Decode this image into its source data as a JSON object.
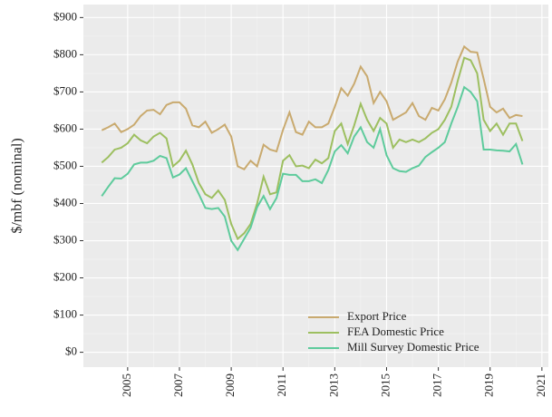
{
  "chart_data": {
    "type": "line",
    "y_label": "$/mbf (nominal)",
    "x": [
      2004,
      2004.25,
      2004.5,
      2004.75,
      2005,
      2005.25,
      2005.5,
      2005.75,
      2006,
      2006.25,
      2006.5,
      2006.75,
      2007,
      2007.25,
      2007.5,
      2007.75,
      2008,
      2008.25,
      2008.5,
      2008.75,
      2009,
      2009.25,
      2009.5,
      2009.75,
      2010,
      2010.25,
      2010.5,
      2010.75,
      2011,
      2011.25,
      2011.5,
      2011.75,
      2012,
      2012.25,
      2012.5,
      2012.75,
      2013,
      2013.25,
      2013.5,
      2013.75,
      2014,
      2014.25,
      2014.5,
      2014.75,
      2015,
      2015.25,
      2015.5,
      2015.75,
      2016,
      2016.25,
      2016.5,
      2016.75,
      2017,
      2017.25,
      2017.5,
      2017.75,
      2018,
      2018.25,
      2018.5,
      2018.75,
      2019,
      2019.25,
      2019.5,
      2019.75,
      2020,
      2020.25
    ],
    "series": [
      {
        "name": "Export Price",
        "color": "#c9aa6f",
        "values": [
          597,
          605,
          615,
          592,
          600,
          612,
          635,
          650,
          652,
          640,
          665,
          672,
          672,
          655,
          610,
          605,
          620,
          590,
          600,
          612,
          580,
          500,
          492,
          515,
          500,
          558,
          545,
          540,
          598,
          645,
          592,
          585,
          620,
          605,
          605,
          615,
          660,
          710,
          690,
          722,
          768,
          742,
          670,
          700,
          675,
          625,
          635,
          645,
          670,
          635,
          625,
          657,
          650,
          680,
          725,
          782,
          822,
          808,
          806,
          735,
          660,
          645,
          655,
          630,
          638,
          635
        ]
      },
      {
        "name": "FEA Domestic Price",
        "color": "#9dbf60",
        "values": [
          510,
          525,
          545,
          550,
          562,
          585,
          570,
          562,
          580,
          590,
          575,
          500,
          515,
          542,
          505,
          455,
          425,
          415,
          435,
          410,
          345,
          305,
          320,
          345,
          400,
          472,
          425,
          430,
          515,
          530,
          500,
          502,
          495,
          518,
          508,
          522,
          595,
          615,
          560,
          610,
          668,
          625,
          595,
          630,
          615,
          550,
          572,
          565,
          572,
          565,
          575,
          590,
          600,
          625,
          660,
          730,
          792,
          785,
          750,
          625,
          595,
          615,
          585,
          615,
          615,
          568
        ]
      },
      {
        "name": "Mill Survey Domestic Price",
        "color": "#5ecb9c",
        "values": [
          420,
          445,
          468,
          467,
          480,
          505,
          510,
          510,
          515,
          528,
          522,
          470,
          478,
          495,
          460,
          425,
          388,
          385,
          388,
          365,
          300,
          275,
          305,
          335,
          390,
          420,
          385,
          415,
          480,
          477,
          477,
          460,
          460,
          465,
          455,
          490,
          540,
          557,
          535,
          580,
          605,
          565,
          550,
          600,
          530,
          495,
          487,
          485,
          495,
          502,
          525,
          538,
          550,
          565,
          615,
          660,
          713,
          700,
          675,
          545,
          545,
          543,
          542,
          540,
          560,
          505
        ]
      }
    ],
    "xlim": [
      2003.29,
      2021.25
    ],
    "xticks": [
      2005,
      2007,
      2009,
      2011,
      2013,
      2015,
      2017,
      2019,
      2021
    ],
    "ylim": [
      -40,
      935
    ],
    "yticks": [
      {
        "value": 0,
        "label": "$0"
      },
      {
        "value": 100,
        "label": "$100"
      },
      {
        "value": 200,
        "label": "$200"
      },
      {
        "value": 300,
        "label": "$300"
      },
      {
        "value": 400,
        "label": "$400"
      },
      {
        "value": 500,
        "label": "$500"
      },
      {
        "value": 600,
        "label": "$600"
      },
      {
        "value": 700,
        "label": "$700"
      },
      {
        "value": 800,
        "label": "$800"
      },
      {
        "value": 900,
        "label": "$900"
      }
    ],
    "grid": true,
    "legend": "bottom-right"
  }
}
